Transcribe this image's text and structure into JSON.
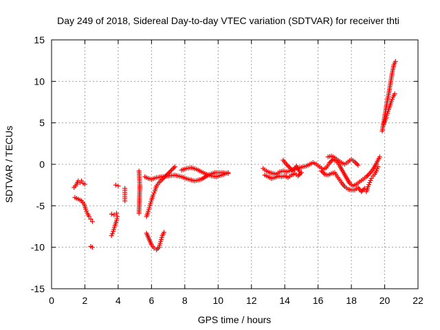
{
  "chart_data": {
    "type": "scatter",
    "title": "Day 249 of 2018, Sidereal Day-to-day VTEC variation (SDTVAR) for receiver thti",
    "xlabel": "GPS time / hours",
    "ylabel": "SDTVAR / TECUs",
    "xlim": [
      0,
      22
    ],
    "ylim": [
      -15,
      15
    ],
    "xticks": [
      0,
      2,
      4,
      6,
      8,
      10,
      12,
      14,
      16,
      18,
      20,
      22
    ],
    "yticks": [
      -15,
      -10,
      -5,
      0,
      5,
      10,
      15
    ],
    "grid": true,
    "marker": "+",
    "color": "#ff0000",
    "series": [
      {
        "name": "SDTVAR",
        "segments": [
          [
            [
              1.35,
              -2.8
            ],
            [
              1.5,
              -2.4
            ],
            [
              1.6,
              -2.0
            ],
            [
              1.7,
              -2.2
            ],
            [
              1.8,
              -2.0
            ],
            [
              1.9,
              -2.3
            ],
            [
              2.0,
              -2.4
            ]
          ],
          [
            [
              1.4,
              -4.0
            ],
            [
              1.6,
              -4.2
            ],
            [
              1.8,
              -4.4
            ],
            [
              1.95,
              -4.8
            ],
            [
              2.05,
              -5.4
            ],
            [
              2.15,
              -5.9
            ],
            [
              2.25,
              -6.3
            ],
            [
              2.35,
              -6.6
            ],
            [
              2.45,
              -6.9
            ]
          ],
          [
            [
              2.35,
              -9.9
            ],
            [
              2.45,
              -10.0
            ]
          ],
          [
            [
              3.85,
              -2.5
            ],
            [
              4.0,
              -2.6
            ]
          ],
          [
            [
              3.6,
              -6.0
            ],
            [
              3.75,
              -6.1
            ],
            [
              3.9,
              -5.9
            ]
          ],
          [
            [
              3.6,
              -8.6
            ],
            [
              3.7,
              -8.1
            ],
            [
              3.8,
              -7.4
            ],
            [
              3.9,
              -6.8
            ],
            [
              3.95,
              -6.3
            ]
          ],
          [
            [
              4.4,
              -2.9
            ],
            [
              4.4,
              -3.4
            ],
            [
              4.4,
              -3.9
            ],
            [
              4.4,
              -4.4
            ]
          ],
          [
            [
              5.25,
              -0.8
            ],
            [
              5.3,
              -2.6
            ],
            [
              5.25,
              -5.9
            ]
          ],
          [
            [
              5.7,
              -6.3
            ],
            [
              5.8,
              -5.7
            ],
            [
              5.9,
              -5.0
            ],
            [
              6.0,
              -4.3
            ],
            [
              6.1,
              -3.7
            ],
            [
              6.2,
              -3.2
            ],
            [
              6.3,
              -2.6
            ],
            [
              6.45,
              -2.2
            ],
            [
              6.6,
              -1.9
            ],
            [
              6.8,
              -1.5
            ],
            [
              7.0,
              -1.1
            ],
            [
              7.2,
              -0.7
            ],
            [
              7.4,
              -0.3
            ]
          ],
          [
            [
              5.6,
              -1.5
            ],
            [
              5.8,
              -1.7
            ],
            [
              6.0,
              -1.8
            ],
            [
              6.3,
              -1.6
            ],
            [
              6.6,
              -1.5
            ],
            [
              7.0,
              -1.4
            ],
            [
              7.4,
              -1.3
            ],
            [
              7.8,
              -1.5
            ],
            [
              8.2,
              -1.8
            ],
            [
              8.6,
              -2.0
            ],
            [
              9.0,
              -1.8
            ],
            [
              9.4,
              -1.3
            ],
            [
              9.8,
              -1.0
            ],
            [
              10.2,
              -1.0
            ],
            [
              10.6,
              -1.1
            ]
          ],
          [
            [
              5.7,
              -8.3
            ],
            [
              5.85,
              -9.0
            ],
            [
              6.0,
              -9.7
            ],
            [
              6.15,
              -10.1
            ],
            [
              6.3,
              -10.3
            ],
            [
              6.45,
              -10.0
            ],
            [
              6.55,
              -9.3
            ],
            [
              6.65,
              -8.6
            ],
            [
              6.75,
              -8.2
            ]
          ],
          [
            [
              7.8,
              -0.7
            ],
            [
              8.1,
              -0.5
            ],
            [
              8.4,
              -0.4
            ],
            [
              8.7,
              -0.6
            ],
            [
              9.0,
              -0.9
            ],
            [
              9.3,
              -1.2
            ],
            [
              9.6,
              -1.4
            ],
            [
              9.9,
              -1.5
            ],
            [
              10.2,
              -1.3
            ],
            [
              10.6,
              -1.0
            ]
          ],
          [
            [
              12.7,
              -0.5
            ],
            [
              12.9,
              -0.8
            ],
            [
              13.1,
              -1.0
            ],
            [
              13.3,
              -1.1
            ],
            [
              13.5,
              -1.2
            ],
            [
              13.7,
              -0.9
            ],
            [
              13.9,
              -0.8
            ],
            [
              14.1,
              -0.9
            ],
            [
              14.3,
              -0.8
            ],
            [
              14.5,
              -0.6
            ],
            [
              14.7,
              -0.5
            ],
            [
              14.9,
              -0.4
            ],
            [
              15.1,
              -0.3
            ],
            [
              15.3,
              -0.2
            ],
            [
              15.5,
              0.0
            ],
            [
              15.7,
              0.2
            ],
            [
              15.9,
              0.0
            ],
            [
              16.1,
              -0.3
            ],
            [
              16.3,
              -0.6
            ],
            [
              16.5,
              -0.4
            ],
            [
              16.7,
              0.2
            ],
            [
              16.9,
              0.6
            ],
            [
              17.1,
              0.4
            ],
            [
              17.3,
              -0.2
            ],
            [
              17.5,
              -0.9
            ],
            [
              17.7,
              -1.6
            ],
            [
              17.9,
              -2.3
            ],
            [
              18.1,
              -2.6
            ],
            [
              18.3,
              -2.4
            ],
            [
              18.5,
              -2.1
            ],
            [
              18.7,
              -1.8
            ],
            [
              18.9,
              -1.5
            ],
            [
              19.1,
              -1.1
            ],
            [
              19.3,
              -0.6
            ],
            [
              19.5,
              0.1
            ],
            [
              19.7,
              0.9
            ]
          ],
          [
            [
              12.8,
              -1.3
            ],
            [
              13.0,
              -1.5
            ],
            [
              13.2,
              -1.7
            ],
            [
              13.4,
              -1.6
            ],
            [
              13.6,
              -1.4
            ],
            [
              13.8,
              -1.5
            ],
            [
              14.0,
              -1.4
            ],
            [
              14.2,
              -1.6
            ],
            [
              14.4,
              -1.3
            ],
            [
              14.6,
              -1.1
            ],
            [
              14.8,
              -1.4
            ],
            [
              15.0,
              -1.0
            ]
          ],
          [
            [
              13.9,
              0.5
            ],
            [
              14.1,
              0.0
            ],
            [
              14.3,
              -0.4
            ],
            [
              14.5,
              -0.8
            ],
            [
              14.7,
              -0.2
            ],
            [
              14.9,
              -0.9
            ]
          ],
          [
            [
              16.6,
              0.9
            ],
            [
              16.8,
              1.0
            ],
            [
              17.0,
              0.8
            ],
            [
              17.2,
              0.5
            ],
            [
              17.4,
              0.2
            ],
            [
              17.6,
              0.0
            ],
            [
              17.8,
              0.3
            ],
            [
              18.0,
              0.6
            ],
            [
              18.2,
              0.3
            ],
            [
              18.4,
              -0.1
            ]
          ],
          [
            [
              16.2,
              -0.8
            ],
            [
              16.4,
              -1.2
            ],
            [
              16.6,
              -1.3
            ],
            [
              16.8,
              -1.1
            ],
            [
              17.0,
              -1.0
            ],
            [
              17.2,
              -1.6
            ],
            [
              17.4,
              -2.2
            ],
            [
              17.6,
              -2.7
            ],
            [
              17.8,
              -3.0
            ],
            [
              18.0,
              -3.1
            ],
            [
              18.2,
              -3.1
            ],
            [
              18.4,
              -2.8
            ],
            [
              18.6,
              -3.3
            ],
            [
              18.8,
              -2.9
            ]
          ],
          [
            [
              18.9,
              -3.3
            ],
            [
              19.0,
              -2.7
            ],
            [
              19.1,
              -2.2
            ],
            [
              19.2,
              -1.7
            ],
            [
              19.3,
              -1.4
            ],
            [
              19.4,
              -1.2
            ],
            [
              19.5,
              -0.8
            ],
            [
              19.6,
              -0.3
            ]
          ],
          [
            [
              19.85,
              4.0
            ],
            [
              19.95,
              5.2
            ],
            [
              20.05,
              6.4
            ],
            [
              20.15,
              7.6
            ],
            [
              20.25,
              8.6
            ],
            [
              20.35,
              9.8
            ],
            [
              20.45,
              11.0
            ],
            [
              20.55,
              12.0
            ],
            [
              20.65,
              12.4
            ]
          ],
          [
            [
              19.9,
              4.6
            ],
            [
              20.0,
              5.1
            ],
            [
              20.1,
              5.7
            ],
            [
              20.2,
              6.4
            ],
            [
              20.3,
              7.0
            ],
            [
              20.4,
              7.6
            ],
            [
              20.5,
              8.1
            ],
            [
              20.6,
              8.5
            ]
          ]
        ]
      }
    ]
  }
}
